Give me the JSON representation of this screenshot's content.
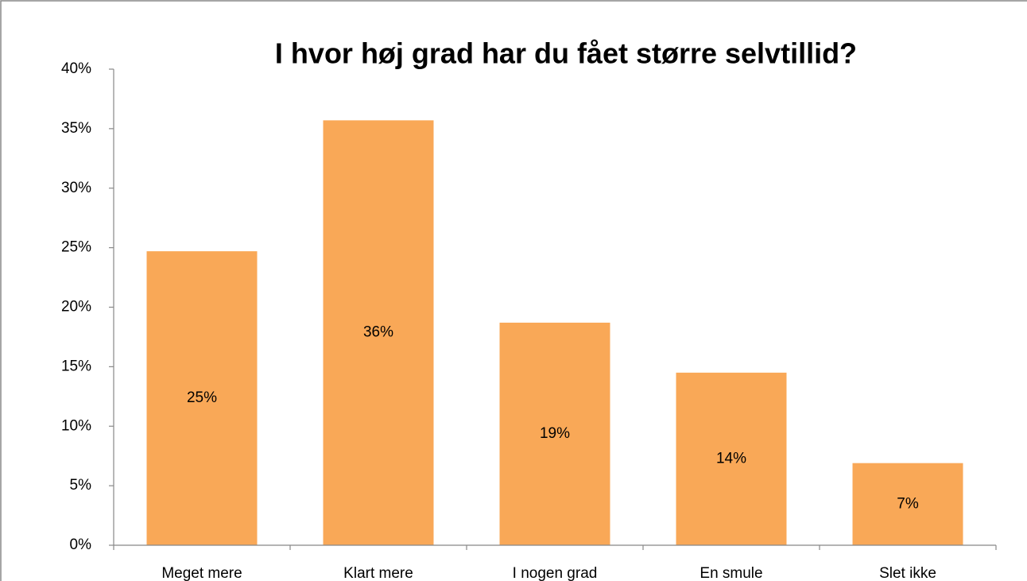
{
  "chart_data": {
    "type": "bar",
    "title": "I hvor høj grad har du fået større selvtillid?",
    "categories": [
      "Meget mere",
      "Klart mere",
      "I nogen grad",
      "En smule",
      "Slet ikke"
    ],
    "values": [
      24.7,
      35.7,
      18.7,
      14.5,
      6.9
    ],
    "value_labels": [
      "25%",
      "36%",
      "19%",
      "14%",
      "7%"
    ],
    "color": "#f9a857",
    "ylim": [
      0,
      40
    ],
    "yticks": [
      {
        "value": 0,
        "label": "0%"
      },
      {
        "value": 5,
        "label": "5%"
      },
      {
        "value": 10,
        "label": "10%"
      },
      {
        "value": 15,
        "label": "15%"
      },
      {
        "value": 20,
        "label": "20%"
      },
      {
        "value": 25,
        "label": "25%"
      },
      {
        "value": 30,
        "label": "30%"
      },
      {
        "value": 35,
        "label": "35%"
      },
      {
        "value": 40,
        "label": "40%"
      }
    ],
    "grid": false
  }
}
